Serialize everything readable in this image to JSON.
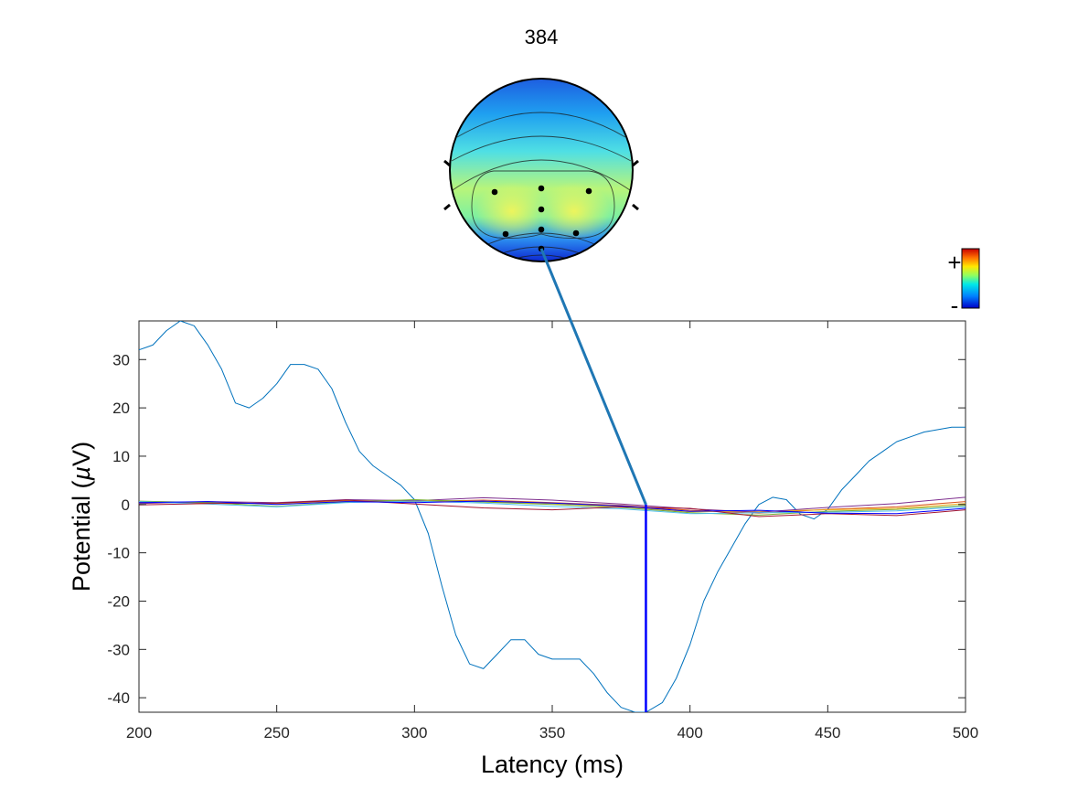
{
  "figure": {
    "title": "384",
    "colorbar": {
      "plus_label": "+",
      "minus_label": "-"
    }
  },
  "chart_data": {
    "type": "line",
    "xlabel": "Latency (ms)",
    "ylabel_parts": [
      "Potential (",
      "µ",
      "V)"
    ],
    "xlim": [
      200,
      500
    ],
    "ylim": [
      -43,
      38
    ],
    "xticks": [
      200,
      250,
      300,
      350,
      400,
      450,
      500
    ],
    "yticks": [
      -40,
      -30,
      -20,
      -10,
      0,
      10,
      20,
      30
    ],
    "grid": false,
    "marker_latency": 384,
    "marker_color": "#0000ff",
    "connector_color": "#1f77b4",
    "series": [
      {
        "color": "#0072bd",
        "x": [
          200,
          205,
          210,
          215,
          220,
          225,
          230,
          235,
          240,
          245,
          250,
          255,
          260,
          265,
          270,
          275,
          280,
          285,
          290,
          295,
          300,
          305,
          310,
          315,
          320,
          325,
          330,
          335,
          340,
          345,
          350,
          355,
          360,
          365,
          370,
          375,
          380,
          384,
          390,
          395,
          400,
          405,
          410,
          415,
          420,
          425,
          430,
          435,
          440,
          445,
          450,
          455,
          460,
          465,
          470,
          475,
          480,
          485,
          490,
          495,
          500
        ],
        "y": [
          32,
          33,
          36,
          38,
          37,
          33,
          28,
          21,
          20,
          22,
          25,
          29,
          29,
          28,
          24,
          17,
          11,
          8,
          6,
          4,
          1,
          -6,
          -17,
          -27,
          -33,
          -34,
          -31,
          -28,
          -28,
          -31,
          -32,
          -32,
          -32,
          -35,
          -39,
          -42,
          -43,
          -43,
          -41,
          -36,
          -29,
          -20,
          -14,
          -9,
          -4,
          0,
          1.5,
          1,
          -2,
          -3,
          -1,
          3,
          6,
          9,
          11,
          13,
          14,
          15,
          15.5,
          16,
          16
        ]
      },
      {
        "color": "#d95319",
        "x": [
          200,
          225,
          250,
          275,
          300,
          325,
          350,
          375,
          400,
          425,
          450,
          475,
          500
        ],
        "y": [
          0.5,
          0.3,
          0.2,
          0.8,
          0.6,
          0.9,
          0.4,
          -0.2,
          -1.2,
          -1.8,
          -1.0,
          -0.5,
          0.6
        ]
      },
      {
        "color": "#edb120",
        "x": [
          200,
          225,
          250,
          275,
          300,
          325,
          350,
          375,
          400,
          425,
          450,
          475,
          500
        ],
        "y": [
          0.3,
          0.5,
          0.1,
          0.7,
          0.9,
          0.6,
          0.2,
          -0.4,
          -1.5,
          -1.4,
          -1.1,
          -0.8,
          0.2
        ]
      },
      {
        "color": "#7e2f8e",
        "x": [
          200,
          225,
          250,
          275,
          300,
          325,
          350,
          375,
          400,
          425,
          450,
          475,
          500
        ],
        "y": [
          0.2,
          0.6,
          0.4,
          1.0,
          0.8,
          1.4,
          0.9,
          0.1,
          -0.9,
          -1.6,
          -0.6,
          0.2,
          1.5
        ]
      },
      {
        "color": "#77ac30",
        "x": [
          200,
          225,
          250,
          275,
          300,
          325,
          350,
          375,
          400,
          425,
          450,
          475,
          500
        ],
        "y": [
          0.7,
          0.4,
          -0.4,
          0.5,
          1.0,
          0.5,
          0.0,
          -0.6,
          -1.7,
          -2.2,
          -1.4,
          -1.0,
          -0.2
        ]
      },
      {
        "color": "#4dbeee",
        "x": [
          200,
          225,
          250,
          275,
          300,
          325,
          350,
          375,
          400,
          425,
          450,
          475,
          500
        ],
        "y": [
          0.6,
          0.1,
          -0.5,
          0.4,
          0.7,
          0.3,
          -0.4,
          -0.9,
          -1.9,
          -1.7,
          -1.6,
          -1.3,
          -0.5
        ]
      },
      {
        "color": "#a2142f",
        "x": [
          200,
          225,
          250,
          275,
          300,
          325,
          350,
          375,
          400,
          425,
          450,
          475,
          500
        ],
        "y": [
          -0.1,
          0.2,
          0.3,
          0.9,
          0.1,
          -0.7,
          -1.1,
          -0.5,
          -0.8,
          -2.5,
          -1.9,
          -2.3,
          -1.1
        ]
      },
      {
        "color": "#0000ff",
        "x": [
          200,
          225,
          250,
          275,
          300,
          325,
          350,
          375,
          400,
          425,
          450,
          475,
          500
        ],
        "y": [
          0.4,
          0.6,
          0.0,
          0.6,
          0.4,
          0.7,
          0.3,
          -0.3,
          -1.4,
          -1.2,
          -1.8,
          -1.9,
          -0.8
        ]
      }
    ]
  }
}
